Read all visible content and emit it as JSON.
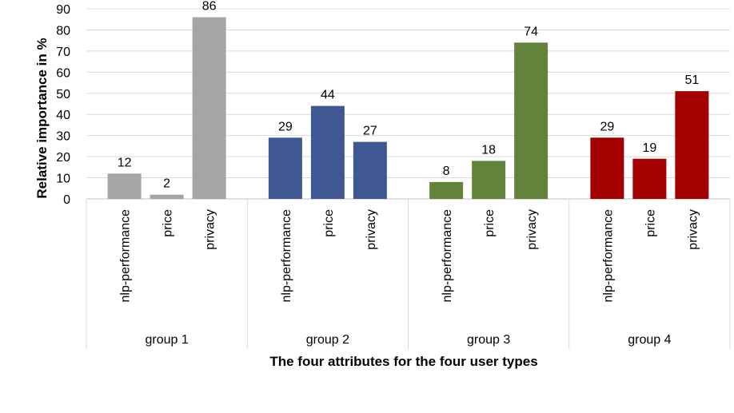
{
  "chart_data": {
    "type": "bar",
    "title": "",
    "xlabel": "The four attributes for the four user types",
    "ylabel": "Relative importance in %",
    "ylim": [
      0,
      90
    ],
    "yticks": [
      0,
      10,
      20,
      30,
      40,
      50,
      60,
      70,
      80,
      90
    ],
    "grid": true,
    "legend": "none",
    "groups": [
      {
        "name": "group 1",
        "color": "#a5a5a5",
        "categories": [
          "nlp-performance",
          "price",
          "privacy"
        ],
        "values": [
          12,
          2,
          86
        ]
      },
      {
        "name": "group 2",
        "color": "#3f5894",
        "categories": [
          "nlp-performance",
          "price",
          "privacy"
        ],
        "values": [
          29,
          44,
          27
        ]
      },
      {
        "name": "group 3",
        "color": "#62843a",
        "categories": [
          "nlp-performance",
          "price",
          "privacy"
        ],
        "values": [
          8,
          18,
          74
        ]
      },
      {
        "name": "group 4",
        "color": "#a30000",
        "categories": [
          "nlp-performance",
          "price",
          "privacy"
        ],
        "values": [
          29,
          19,
          51
        ]
      }
    ]
  }
}
